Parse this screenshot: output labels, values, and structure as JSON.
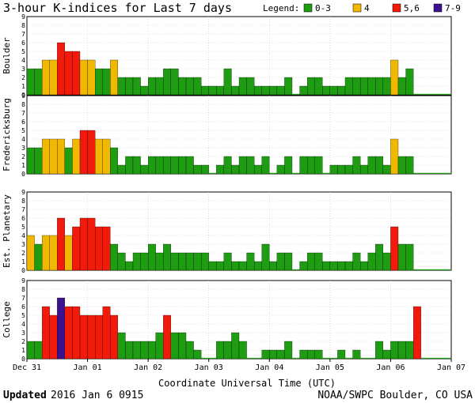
{
  "chart_data": {
    "type": "bar",
    "title": "3-hour K-indices for Last 7 days",
    "xlabel": "Coordinate Universal Time (UTC)",
    "legend": {
      "label": "Legend:",
      "entries": [
        {
          "label": "0-3",
          "color": "#1e9c12"
        },
        {
          "label": "4",
          "color": "#f0b800"
        },
        {
          "label": "5,6",
          "color": "#f21a0a"
        },
        {
          "label": "7-9",
          "color": "#3c1190"
        }
      ],
      "placement": "top-right"
    },
    "x_ticks": [
      "Dec 31",
      "Jan 01",
      "Jan 02",
      "Jan 03",
      "Jan 04",
      "Jan 05",
      "Jan 06",
      "Jan 07"
    ],
    "ylim": [
      0,
      9
    ],
    "y_ticks": [
      "0",
      "1",
      "2",
      "3",
      "4",
      "5",
      "6",
      "7",
      "8",
      "9"
    ],
    "grid": true,
    "series": [
      {
        "name": "Boulder",
        "values": [
          3,
          3,
          4,
          4,
          6,
          5,
          5,
          4,
          4,
          3,
          3,
          4,
          2,
          2,
          2,
          1,
          2,
          2,
          3,
          3,
          2,
          2,
          2,
          1,
          1,
          1,
          3,
          1,
          2,
          2,
          1,
          1,
          1,
          1,
          2,
          0,
          1,
          2,
          2,
          1,
          1,
          1,
          2,
          2,
          2,
          2,
          2,
          2,
          4,
          2,
          3,
          0,
          0,
          0,
          0,
          0
        ]
      },
      {
        "name": "Fredericksburg",
        "values": [
          3,
          3,
          4,
          4,
          4,
          3,
          4,
          5,
          5,
          4,
          4,
          3,
          1,
          2,
          2,
          1,
          2,
          2,
          2,
          2,
          2,
          2,
          1,
          1,
          0,
          1,
          2,
          1,
          2,
          2,
          1,
          2,
          0,
          1,
          2,
          0,
          2,
          2,
          2,
          0,
          1,
          1,
          1,
          2,
          1,
          2,
          2,
          1,
          4,
          2,
          2,
          0,
          0,
          0,
          0,
          0
        ]
      },
      {
        "name": "Est. Planetary",
        "values": [
          4,
          3,
          4,
          4,
          6,
          4,
          5,
          6,
          6,
          5,
          5,
          3,
          2,
          1,
          2,
          2,
          3,
          2,
          3,
          2,
          2,
          2,
          2,
          2,
          1,
          1,
          2,
          1,
          1,
          2,
          1,
          3,
          1,
          2,
          2,
          0,
          1,
          2,
          2,
          1,
          1,
          1,
          1,
          2,
          1,
          2,
          3,
          2,
          5,
          3,
          3,
          0,
          0,
          0,
          0,
          0
        ]
      },
      {
        "name": "College",
        "values": [
          2,
          2,
          6,
          5,
          7,
          6,
          6,
          5,
          5,
          5,
          6,
          5,
          3,
          2,
          2,
          2,
          2,
          3,
          5,
          3,
          3,
          2,
          1,
          0,
          0,
          2,
          2,
          3,
          2,
          0,
          0,
          1,
          1,
          1,
          2,
          0,
          1,
          1,
          1,
          0,
          0,
          1,
          0,
          1,
          0,
          0,
          2,
          1,
          2,
          2,
          2,
          6,
          0,
          0,
          0,
          0
        ]
      }
    ]
  },
  "footer": {
    "updated_label": "Updated",
    "updated_value": "2016 Jan  6 0915",
    "credit": "NOAA/SWPC Boulder, CO USA"
  }
}
